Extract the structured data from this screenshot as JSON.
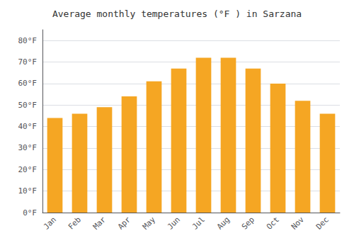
{
  "chart_data": {
    "type": "bar",
    "title": "Average monthly temperatures (°F ) in Sarzana",
    "categories": [
      "Jan",
      "Feb",
      "Mar",
      "Apr",
      "May",
      "Jun",
      "Jul",
      "Aug",
      "Sep",
      "Oct",
      "Nov",
      "Dec"
    ],
    "values": [
      44,
      46,
      49,
      54,
      61,
      67,
      72,
      72,
      67,
      60,
      52,
      46
    ],
    "color": "#F5A623",
    "ylim": [
      0,
      85
    ],
    "yticks": [
      {
        "value": 0,
        "label": "0°F"
      },
      {
        "value": 10,
        "label": "10°F"
      },
      {
        "value": 20,
        "label": "20°F"
      },
      {
        "value": 30,
        "label": "30°F"
      },
      {
        "value": 40,
        "label": "40°F"
      },
      {
        "value": 50,
        "label": "50°F"
      },
      {
        "value": 60,
        "label": "60°F"
      },
      {
        "value": 70,
        "label": "70°F"
      },
      {
        "value": 80,
        "label": "80°F"
      }
    ],
    "grid": true
  }
}
